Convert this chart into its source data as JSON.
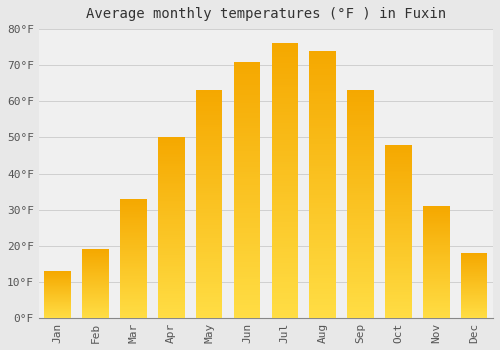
{
  "title": "Average monthly temperatures (°F ) in Fuxin",
  "months": [
    "Jan",
    "Feb",
    "Mar",
    "Apr",
    "May",
    "Jun",
    "Jul",
    "Aug",
    "Sep",
    "Oct",
    "Nov",
    "Dec"
  ],
  "values": [
    13,
    19,
    33,
    50,
    63,
    71,
    76,
    74,
    63,
    48,
    31,
    18
  ],
  "bar_color_bottom": "#FFDD44",
  "bar_color_top": "#F5A800",
  "ylim": [
    0,
    80
  ],
  "yticks": [
    0,
    10,
    20,
    30,
    40,
    50,
    60,
    70,
    80
  ],
  "background_color": "#e8e8e8",
  "plot_bg_color": "#f0f0f0",
  "grid_color": "#d0d0d0",
  "title_fontsize": 10,
  "tick_fontsize": 8,
  "figsize": [
    5.0,
    3.5
  ],
  "dpi": 100,
  "bar_width": 0.7
}
